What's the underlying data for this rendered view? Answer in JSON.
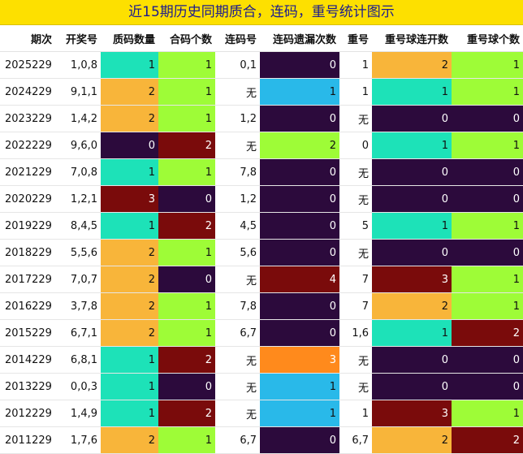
{
  "title": "近15期历史同期质合，连码，重号统计图示",
  "headers": [
    "期次",
    "开奖号",
    "质码数量",
    "合码个数",
    "连码号",
    "连码遗漏次数",
    "重号",
    "重号球连开数",
    "重号球个数"
  ],
  "rows": [
    [
      "2025229",
      "1,0,8",
      "1",
      "1",
      "0,1",
      "0",
      "1",
      "2",
      "1"
    ],
    [
      "2024229",
      "9,1,1",
      "2",
      "1",
      "无",
      "1",
      "1",
      "1",
      "1"
    ],
    [
      "2023229",
      "1,4,2",
      "2",
      "1",
      "1,2",
      "0",
      "无",
      "0",
      "0"
    ],
    [
      "2022229",
      "9,6,0",
      "0",
      "2",
      "无",
      "2",
      "0",
      "1",
      "1"
    ],
    [
      "2021229",
      "7,0,8",
      "1",
      "1",
      "7,8",
      "0",
      "无",
      "0",
      "0"
    ],
    [
      "2020229",
      "1,2,1",
      "3",
      "0",
      "1,2",
      "0",
      "无",
      "0",
      "0"
    ],
    [
      "2019229",
      "8,4,5",
      "1",
      "2",
      "4,5",
      "0",
      "5",
      "1",
      "1"
    ],
    [
      "2018229",
      "5,5,6",
      "2",
      "1",
      "5,6",
      "0",
      "无",
      "0",
      "0"
    ],
    [
      "2017229",
      "7,0,7",
      "2",
      "0",
      "无",
      "4",
      "7",
      "3",
      "1"
    ],
    [
      "2016229",
      "3,7,8",
      "2",
      "1",
      "7,8",
      "0",
      "7",
      "2",
      "1"
    ],
    [
      "2015229",
      "6,7,1",
      "2",
      "1",
      "6,7",
      "0",
      "1,6",
      "1",
      "2"
    ],
    [
      "2014229",
      "6,8,1",
      "1",
      "2",
      "无",
      "3",
      "无",
      "0",
      "0"
    ],
    [
      "2013229",
      "0,0,3",
      "1",
      "0",
      "无",
      "1",
      "无",
      "0",
      "0"
    ],
    [
      "2012229",
      "1,4,9",
      "1",
      "2",
      "无",
      "1",
      "1",
      "3",
      "1"
    ],
    [
      "2011229",
      "1,7,6",
      "2",
      "1",
      "6,7",
      "0",
      "6,7",
      "2",
      "2"
    ]
  ],
  "cell_colors": {
    "zhima": [
      "#1de2b8",
      "#f8b53a",
      "#f8b53a",
      "#2c0a3c",
      "#1de2b8",
      "#7a0b0b",
      "#1de2b8",
      "#f8b53a",
      "#f8b53a",
      "#f8b53a",
      "#f8b53a",
      "#1de2b8",
      "#1de2b8",
      "#1de2b8",
      "#f8b53a"
    ],
    "hema": [
      "#9efc37",
      "#9efc37",
      "#9efc37",
      "#7a0b0b",
      "#9efc37",
      "#2c0a3c",
      "#7a0b0b",
      "#9efc37",
      "#2c0a3c",
      "#9efc37",
      "#9efc37",
      "#7a0b0b",
      "#2c0a3c",
      "#7a0b0b",
      "#9efc37"
    ],
    "lianma_yilou": [
      "#2c0a3c",
      "#29b9e9",
      "#2c0a3c",
      "#9efc37",
      "#2c0a3c",
      "#2c0a3c",
      "#2c0a3c",
      "#2c0a3c",
      "#7a0b0b",
      "#2c0a3c",
      "#2c0a3c",
      "#ff8a1c",
      "#29b9e9",
      "#29b9e9",
      "#2c0a3c"
    ],
    "chonghao_lian": [
      "#f8b53a",
      "#1de2b8",
      "#2c0a3c",
      "#1de2b8",
      "#2c0a3c",
      "#2c0a3c",
      "#1de2b8",
      "#2c0a3c",
      "#7a0b0b",
      "#f8b53a",
      "#1de2b8",
      "#2c0a3c",
      "#2c0a3c",
      "#7a0b0b",
      "#f8b53a"
    ],
    "chonghao_ge": [
      "#9efc37",
      "#9efc37",
      "#2c0a3c",
      "#9efc37",
      "#2c0a3c",
      "#2c0a3c",
      "#9efc37",
      "#2c0a3c",
      "#9efc37",
      "#9efc37",
      "#7a0b0b",
      "#2c0a3c",
      "#2c0a3c",
      "#9efc37",
      "#7a0b0b"
    ]
  }
}
